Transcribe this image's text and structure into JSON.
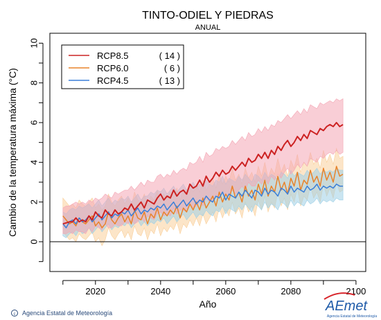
{
  "chart_data": {
    "type": "line",
    "title": "TINTO-ODIEL Y PIEDRAS",
    "subtitle": "ANUAL",
    "xlabel": "Año",
    "ylabel": "Cambio  de la temperatura máxima (°C)",
    "xlim": [
      2006,
      2103
    ],
    "ylim": [
      -1.5,
      10.5
    ],
    "x_ticks": [
      2020,
      2040,
      2060,
      2080,
      2100
    ],
    "y_ticks": [
      0,
      2,
      4,
      6,
      8,
      10
    ],
    "zero_line": 0,
    "legend_position": "top-left",
    "x_start": 2010,
    "series": [
      {
        "name": "RCP8.5",
        "count": "( 14 )",
        "color": "#cc2222",
        "band_color": "#f4a6b4",
        "values": [
          0.9,
          0.95,
          1.0,
          1.0,
          1.2,
          1.0,
          1.1,
          1.0,
          1.3,
          1.1,
          1.5,
          1.3,
          1.2,
          1.6,
          1.4,
          1.3,
          1.6,
          1.4,
          1.5,
          1.7,
          1.6,
          1.9,
          1.6,
          1.8,
          2.0,
          1.7,
          2.1,
          2.0,
          1.9,
          2.2,
          2.4,
          2.1,
          2.3,
          2.2,
          2.6,
          2.3,
          2.5,
          2.6,
          2.4,
          2.9,
          2.7,
          2.8,
          3.1,
          2.8,
          3.3,
          3.0,
          3.2,
          3.5,
          3.3,
          3.6,
          3.4,
          3.5,
          3.8,
          3.6,
          3.8,
          4.0,
          3.8,
          4.2,
          4.0,
          4.1,
          4.4,
          4.2,
          4.5,
          4.2,
          4.6,
          4.4,
          4.8,
          4.6,
          4.9,
          5.1,
          4.8,
          5.0,
          5.3,
          5.1,
          5.4,
          5.2,
          5.6,
          5.5,
          5.4,
          5.7,
          5.6,
          5.8,
          5.9,
          5.8,
          6.0,
          5.8,
          5.9
        ],
        "upper": [
          1.7,
          1.8,
          1.8,
          1.9,
          2.0,
          1.9,
          2.0,
          1.9,
          2.1,
          2.0,
          2.2,
          2.1,
          2.2,
          2.4,
          2.3,
          2.2,
          2.5,
          2.4,
          2.5,
          2.6,
          2.6,
          2.8,
          2.6,
          2.8,
          3.0,
          2.8,
          3.1,
          3.0,
          3.0,
          3.3,
          3.4,
          3.2,
          3.4,
          3.3,
          3.6,
          3.4,
          3.6,
          3.7,
          3.6,
          4.0,
          3.9,
          4.0,
          4.3,
          4.0,
          4.5,
          4.3,
          4.4,
          4.7,
          4.6,
          4.8,
          4.7,
          4.8,
          5.1,
          4.9,
          5.1,
          5.3,
          5.1,
          5.5,
          5.3,
          5.4,
          5.7,
          5.5,
          5.8,
          5.6,
          5.9,
          5.8,
          6.1,
          6.0,
          6.2,
          6.4,
          6.2,
          6.4,
          6.6,
          6.4,
          6.7,
          6.5,
          6.9,
          6.8,
          6.7,
          7.0,
          6.9,
          7.0,
          7.1,
          7.0,
          7.2,
          7.1,
          7.2
        ],
        "lower": [
          0.4,
          0.4,
          0.5,
          0.4,
          0.6,
          0.5,
          0.5,
          0.4,
          0.7,
          0.5,
          0.8,
          0.7,
          0.6,
          0.9,
          0.7,
          0.7,
          0.9,
          0.8,
          0.8,
          1.0,
          0.9,
          1.1,
          0.9,
          1.0,
          1.2,
          1.0,
          1.3,
          1.2,
          1.1,
          1.4,
          1.5,
          1.3,
          1.4,
          1.3,
          1.7,
          1.4,
          1.6,
          1.6,
          1.5,
          1.9,
          1.7,
          1.8,
          2.0,
          1.8,
          2.2,
          2.0,
          2.1,
          2.4,
          2.2,
          2.5,
          2.3,
          2.4,
          2.6,
          2.4,
          2.6,
          2.8,
          2.6,
          3.0,
          2.8,
          2.8,
          3.1,
          2.9,
          3.2,
          2.9,
          3.3,
          3.1,
          3.4,
          3.2,
          3.5,
          3.7,
          3.4,
          3.6,
          3.9,
          3.7,
          4.0,
          3.8,
          4.2,
          4.1,
          4.0,
          4.3,
          4.2,
          4.4,
          4.5,
          4.4,
          4.6,
          4.4,
          4.5
        ]
      },
      {
        "name": "RCP6.0",
        "count": "(  6 )",
        "color": "#e8832a",
        "band_color": "#f9cf9a",
        "values": [
          1.3,
          1.1,
          0.9,
          1.0,
          0.8,
          1.2,
          1.0,
          0.9,
          1.1,
          1.3,
          0.8,
          1.0,
          0.7,
          0.9,
          1.5,
          1.1,
          0.9,
          1.2,
          1.4,
          1.0,
          1.3,
          0.9,
          1.6,
          1.2,
          1.1,
          1.5,
          0.9,
          1.4,
          1.2,
          1.7,
          1.1,
          1.5,
          1.3,
          1.6,
          1.4,
          1.8,
          1.2,
          1.7,
          1.5,
          1.9,
          1.6,
          2.0,
          1.6,
          2.2,
          1.7,
          2.0,
          2.3,
          1.8,
          2.5,
          2.0,
          2.4,
          2.1,
          2.8,
          2.2,
          2.5,
          2.0,
          2.8,
          2.3,
          2.6,
          2.1,
          2.9,
          2.4,
          3.1,
          2.3,
          2.8,
          2.5,
          3.3,
          2.6,
          3.0,
          2.4,
          3.2,
          2.8,
          3.5,
          2.6,
          3.1,
          2.9,
          3.6,
          3.0,
          3.3,
          2.8,
          3.7,
          3.1,
          3.5,
          3.0,
          3.8,
          3.3,
          3.4
        ],
        "upper": [
          2.2,
          2.0,
          1.8,
          1.9,
          1.7,
          2.1,
          1.9,
          1.8,
          2.0,
          2.2,
          1.7,
          1.9,
          1.6,
          1.8,
          2.4,
          2.0,
          1.8,
          2.1,
          2.3,
          1.9,
          2.2,
          1.8,
          2.5,
          2.1,
          2.0,
          2.4,
          1.8,
          2.3,
          2.1,
          2.6,
          2.0,
          2.4,
          2.2,
          2.5,
          2.3,
          2.7,
          2.1,
          2.6,
          2.4,
          2.8,
          2.5,
          2.9,
          2.5,
          3.1,
          2.6,
          2.9,
          3.2,
          2.7,
          3.4,
          2.9,
          3.3,
          3.0,
          3.7,
          3.1,
          3.4,
          2.9,
          3.7,
          3.2,
          3.5,
          3.0,
          3.8,
          3.3,
          4.0,
          3.2,
          3.7,
          3.4,
          4.2,
          3.5,
          3.9,
          3.3,
          4.1,
          3.7,
          4.4,
          3.5,
          4.0,
          3.8,
          4.5,
          3.9,
          4.2,
          3.7,
          4.6,
          4.0,
          4.4,
          3.9,
          4.7,
          4.2,
          4.3
        ],
        "lower": [
          0.5,
          0.3,
          0.1,
          0.2,
          0.0,
          0.4,
          0.2,
          0.1,
          0.3,
          0.5,
          0.0,
          0.2,
          -0.2,
          0.1,
          0.7,
          0.3,
          0.1,
          0.4,
          0.6,
          0.2,
          0.5,
          0.1,
          0.8,
          0.4,
          0.3,
          0.7,
          0.1,
          0.6,
          0.4,
          0.9,
          0.3,
          0.7,
          0.5,
          0.8,
          0.6,
          1.0,
          0.4,
          0.9,
          0.7,
          1.1,
          0.8,
          1.2,
          0.8,
          1.4,
          0.9,
          1.2,
          1.5,
          1.0,
          1.7,
          1.2,
          1.6,
          1.3,
          2.0,
          1.4,
          1.7,
          1.2,
          2.0,
          1.5,
          1.8,
          1.3,
          2.1,
          1.6,
          2.3,
          1.5,
          2.0,
          1.7,
          2.5,
          1.8,
          2.2,
          1.6,
          2.4,
          2.0,
          2.7,
          1.8,
          2.3,
          2.1,
          2.8,
          2.2,
          2.5,
          2.0,
          2.9,
          2.3,
          2.7,
          2.2,
          3.0,
          2.5,
          2.6
        ]
      },
      {
        "name": "RCP4.5",
        "count": "( 13 )",
        "color": "#3a7fd8",
        "band_color": "#9ed0e6",
        "values": [
          0.9,
          0.7,
          1.0,
          1.1,
          0.9,
          1.2,
          1.0,
          1.1,
          1.3,
          1.0,
          1.2,
          1.4,
          1.1,
          1.3,
          1.5,
          1.2,
          1.4,
          1.3,
          1.5,
          1.4,
          1.6,
          1.3,
          1.5,
          1.7,
          1.4,
          1.6,
          1.5,
          1.7,
          1.6,
          1.8,
          1.7,
          1.9,
          1.6,
          1.8,
          2.0,
          1.7,
          1.9,
          2.1,
          1.8,
          2.0,
          2.2,
          1.9,
          2.1,
          2.0,
          2.3,
          2.1,
          2.0,
          2.3,
          2.2,
          2.5,
          2.1,
          2.4,
          2.3,
          2.2,
          2.5,
          2.3,
          2.6,
          2.4,
          2.2,
          2.6,
          2.5,
          2.3,
          2.7,
          2.4,
          2.6,
          2.5,
          2.3,
          2.7,
          2.6,
          2.4,
          2.8,
          2.5,
          2.7,
          2.6,
          2.5,
          2.8,
          2.6,
          2.7,
          2.9,
          2.6,
          2.8,
          2.7,
          2.8,
          2.7,
          2.9,
          2.8,
          2.8
        ],
        "upper": [
          1.5,
          1.4,
          1.6,
          1.7,
          1.6,
          1.8,
          1.7,
          1.8,
          1.9,
          1.7,
          1.9,
          2.1,
          1.8,
          2.0,
          2.2,
          1.9,
          2.1,
          2.0,
          2.2,
          2.1,
          2.3,
          2.0,
          2.2,
          2.4,
          2.1,
          2.3,
          2.3,
          2.5,
          2.4,
          2.6,
          2.5,
          2.7,
          2.4,
          2.6,
          2.8,
          2.5,
          2.7,
          2.9,
          2.6,
          2.8,
          3.0,
          2.7,
          2.9,
          2.8,
          3.1,
          2.9,
          2.8,
          3.1,
          3.0,
          3.3,
          2.9,
          3.2,
          3.1,
          3.0,
          3.3,
          3.1,
          3.4,
          3.2,
          3.0,
          3.4,
          3.3,
          3.1,
          3.5,
          3.2,
          3.4,
          3.3,
          3.1,
          3.5,
          3.4,
          3.2,
          3.6,
          3.3,
          3.5,
          3.4,
          3.3,
          3.6,
          3.4,
          3.5,
          3.7,
          3.4,
          3.6,
          3.5,
          3.6,
          3.5,
          3.7,
          3.6,
          3.6
        ],
        "lower": [
          0.3,
          0.2,
          0.4,
          0.5,
          0.3,
          0.6,
          0.4,
          0.5,
          0.7,
          0.4,
          0.6,
          0.8,
          0.5,
          0.7,
          0.9,
          0.6,
          0.8,
          0.7,
          0.9,
          0.8,
          1.0,
          0.7,
          0.9,
          1.1,
          0.8,
          1.0,
          0.8,
          1.0,
          0.9,
          1.1,
          1.0,
          1.2,
          0.9,
          1.1,
          1.3,
          1.0,
          1.2,
          1.4,
          1.1,
          1.3,
          1.5,
          1.2,
          1.4,
          1.3,
          1.6,
          1.4,
          1.3,
          1.6,
          1.5,
          1.8,
          1.4,
          1.7,
          1.6,
          1.5,
          1.8,
          1.6,
          1.9,
          1.7,
          1.5,
          1.9,
          1.8,
          1.6,
          2.0,
          1.7,
          1.9,
          1.8,
          1.6,
          2.0,
          1.9,
          1.7,
          2.1,
          1.8,
          2.0,
          1.9,
          1.8,
          2.1,
          1.9,
          2.0,
          2.2,
          1.9,
          2.1,
          2.0,
          2.1,
          2.0,
          2.2,
          2.1,
          2.1
        ]
      }
    ]
  },
  "footer": {
    "credit": "Agencia Estatal de Meteorología",
    "logo_text": "AEmet",
    "logo_subtext": "Agencia Estatal de Meteorología"
  }
}
